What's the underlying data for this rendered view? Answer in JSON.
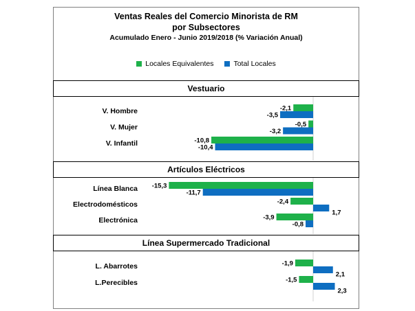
{
  "colors": {
    "green": "#1EB14A",
    "blue": "#0E6EC1",
    "axis": "#d0d0d0"
  },
  "chart_data": {
    "type": "bar",
    "orientation": "horizontal",
    "title": "Ventas Reales del Comercio Minorista de RM",
    "subtitle_line2": "por Subsectores",
    "subtitle_line3": "Acumulado Enero - Junio 2019/2018 (% Variación Anual)",
    "legend": [
      "Locales Equivalentes",
      "Total Locales"
    ],
    "legend_position": "top",
    "xlim": [
      -16.5,
      4.5
    ],
    "series": [
      {
        "name": "Locales Equivalentes",
        "color": "#1EB14A"
      },
      {
        "name": "Total Locales",
        "color": "#0E6EC1"
      }
    ],
    "sections": [
      {
        "title": "Vestuario",
        "categories": [
          {
            "label": "V. Hombre",
            "values": [
              -2.1,
              -3.5
            ],
            "labels": [
              "-2,1",
              "-3,5"
            ]
          },
          {
            "label": "V. Mujer",
            "values": [
              -0.5,
              -3.2
            ],
            "labels": [
              "-0,5",
              "-3,2"
            ]
          },
          {
            "label": "V. Infantil",
            "values": [
              -10.8,
              -10.4
            ],
            "labels": [
              "-10,8",
              "-10,4"
            ]
          }
        ]
      },
      {
        "title": "Artículos Eléctricos",
        "categories": [
          {
            "label": "Línea Blanca",
            "values": [
              -15.3,
              -11.7
            ],
            "labels": [
              "-15,3",
              "-11,7"
            ]
          },
          {
            "label": "Electrodomésticos",
            "values": [
              -2.4,
              1.7
            ],
            "labels": [
              "-2,4",
              "1,7"
            ]
          },
          {
            "label": "Electrónica",
            "values": [
              -3.9,
              -0.8
            ],
            "labels": [
              "-3,9",
              "-0,8"
            ]
          }
        ]
      },
      {
        "title": "Línea  Supermercado Tradicional",
        "categories": [
          {
            "label": "L. Abarrotes",
            "values": [
              -1.9,
              2.1
            ],
            "labels": [
              "-1,9",
              "2,1"
            ]
          },
          {
            "label": "L.Perecibles",
            "values": [
              -1.5,
              2.3
            ],
            "labels": [
              "-1,5",
              "2,3"
            ]
          }
        ]
      }
    ]
  }
}
